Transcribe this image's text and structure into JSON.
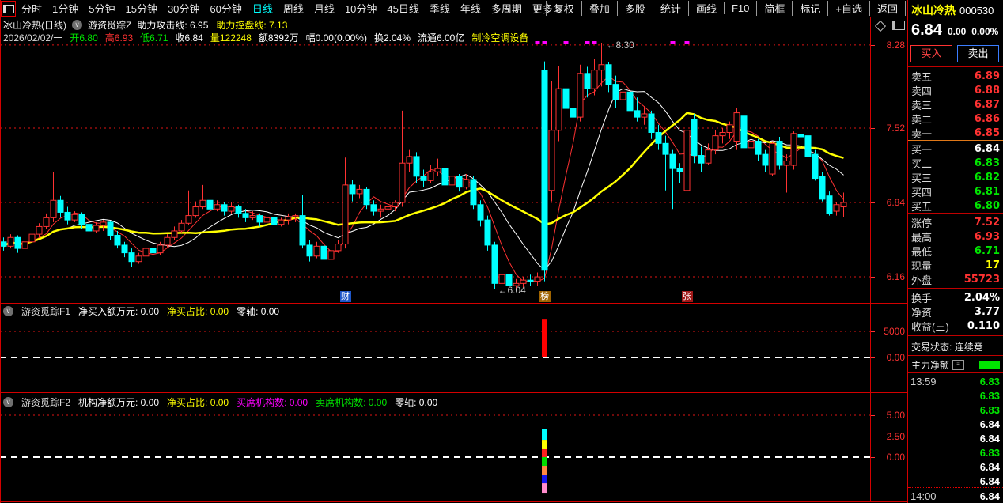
{
  "colors": {
    "red": "#ff3232",
    "green": "#00e600",
    "yellow": "#ffff00",
    "white": "#ffffff",
    "cyan": "#00ffff",
    "magenta": "#ff00ff",
    "axis": "#ff3232"
  },
  "toolbar": {
    "items_left": [
      "分时",
      "1分钟",
      "5分钟",
      "15分钟",
      "30分钟",
      "60分钟",
      "日线",
      "周线",
      "月线",
      "10分钟",
      "45日线",
      "季线",
      "年线",
      "多周期",
      "更多 >"
    ],
    "active_item": "日线",
    "items_right": [
      "复权",
      "叠加",
      "多股",
      "统计",
      "画线",
      "F10",
      "简框",
      "标记",
      "+自选",
      "返回"
    ]
  },
  "title_row": {
    "name_period": "冰山冷热(日线)",
    "indicator": "游资觅踪Z",
    "fields": [
      [
        "助力攻击线: 6.95",
        "#ffffff"
      ],
      [
        "助力控盘线: 7.13",
        "#ffff00"
      ]
    ]
  },
  "ohlc_row": [
    [
      "2026/02/02/一",
      "#dcdcdc"
    ],
    [
      "开6.80",
      "#00e600"
    ],
    [
      "高6.93",
      "#ff3232"
    ],
    [
      "低6.71",
      "#00e600"
    ],
    [
      "收6.84",
      "#ffffff"
    ],
    [
      "量122248",
      "#ffff00"
    ],
    [
      "额8392万",
      "#ffffff"
    ],
    [
      "幅0.00(0.00%)",
      "#ffffff"
    ],
    [
      "换2.04%",
      "#ffffff"
    ],
    [
      "流通6.00亿",
      "#ffffff"
    ],
    [
      "制冷空调设备",
      "#ffff00"
    ]
  ],
  "f1_header": [
    [
      "净买入额万元: 0.00",
      "#ffffff"
    ],
    [
      "净买占比: 0.00",
      "#ffff00"
    ],
    [
      "零轴: 0.00",
      "#ffffff"
    ]
  ],
  "f1_name": "游资觅踪F1",
  "f2_header": [
    [
      "机构净额万元: 0.00",
      "#ffffff"
    ],
    [
      "净买占比: 0.00",
      "#ffff00"
    ],
    [
      "买席机构数: 0.00",
      "#ff00ff"
    ],
    [
      "卖席机构数: 0.00",
      "#00e600"
    ],
    [
      "零轴: 0.00",
      "#ffffff"
    ]
  ],
  "f2_name": "游资觅踪F2",
  "right_panel": {
    "stock_name": "冰山冷热",
    "stock_code": "000530",
    "price": "6.84",
    "change": "0.00",
    "change_pct": "0.00%",
    "buy_button": "买入",
    "sell_button": "卖出",
    "sell_queue": [
      [
        "卖五",
        "6.89"
      ],
      [
        "卖四",
        "6.88"
      ],
      [
        "卖三",
        "6.87"
      ],
      [
        "卖二",
        "6.86"
      ],
      [
        "卖一",
        "6.85"
      ]
    ],
    "buy_queue": [
      [
        "买一",
        "6.84",
        "#ffffff"
      ],
      [
        "买二",
        "6.83",
        "#00e600"
      ],
      [
        "买三",
        "6.82",
        "#00e600"
      ],
      [
        "买四",
        "6.81",
        "#00e600"
      ],
      [
        "买五",
        "6.80",
        "#00e600"
      ]
    ],
    "stats": [
      [
        "涨停",
        "7.52",
        "#ff3232"
      ],
      [
        "最高",
        "6.93",
        "#ff3232"
      ],
      [
        "最低",
        "6.71",
        "#00e600"
      ],
      [
        "现量",
        "17",
        "#ffff00"
      ],
      [
        "外盘",
        "55723",
        "#ff3232"
      ]
    ],
    "stats2": [
      [
        "换手",
        "2.04%",
        "#ffffff"
      ],
      [
        "净资",
        "3.77",
        "#ffffff"
      ],
      [
        "收益(三)",
        "0.110",
        "#ffffff"
      ]
    ],
    "trade_status_label": "交易状态:",
    "trade_status_value": "连续竞",
    "main_flow_label": "主力净额",
    "trades": [
      [
        "13:59",
        "6.83",
        "#00e600"
      ],
      [
        "",
        "6.83",
        "#00e600"
      ],
      [
        "",
        "6.83",
        "#00e600"
      ],
      [
        "",
        "6.84",
        "#ffffff"
      ],
      [
        "",
        "6.84",
        "#ffffff"
      ],
      [
        "",
        "6.83",
        "#00e600"
      ],
      [
        "",
        "6.84",
        "#ffffff"
      ],
      [
        "",
        "6.84",
        "#ffffff"
      ],
      [
        "14:00",
        "6.84",
        "#ffffff"
      ]
    ]
  },
  "chart_data": [
    {
      "type": "candlestick",
      "panel": "main",
      "title": "冰山冷热(日线) 游资觅踪Z",
      "y_axis_ticks": [
        "8.28",
        "7.52",
        "6.84",
        "6.16"
      ],
      "grid_values": [
        8.28,
        7.52,
        6.84,
        6.16
      ],
      "up_color": "#ff3232",
      "down_color": "#00ffff",
      "ohlc": [
        [
          6.48,
          6.52,
          6.4,
          6.44
        ],
        [
          6.44,
          6.55,
          6.42,
          6.52
        ],
        [
          6.52,
          6.54,
          6.38,
          6.42
        ],
        [
          6.42,
          6.5,
          6.4,
          6.48
        ],
        [
          6.48,
          6.58,
          6.46,
          6.55
        ],
        [
          6.55,
          6.65,
          6.52,
          6.62
        ],
        [
          6.62,
          6.74,
          6.6,
          6.7
        ],
        [
          6.7,
          7.12,
          6.66,
          6.86
        ],
        [
          6.86,
          6.9,
          6.7,
          6.75
        ],
        [
          6.75,
          6.8,
          6.64,
          6.68
        ],
        [
          6.68,
          6.76,
          6.66,
          6.73
        ],
        [
          6.73,
          6.75,
          6.6,
          6.64
        ],
        [
          6.64,
          6.68,
          6.54,
          6.58
        ],
        [
          6.58,
          6.66,
          6.56,
          6.63
        ],
        [
          6.63,
          6.68,
          6.58,
          6.66
        ],
        [
          6.66,
          6.67,
          6.5,
          6.54
        ],
        [
          6.54,
          6.58,
          6.42,
          6.45
        ],
        [
          6.45,
          6.48,
          6.34,
          6.38
        ],
        [
          6.38,
          6.42,
          6.25,
          6.3
        ],
        [
          6.3,
          6.38,
          6.28,
          6.35
        ],
        [
          6.35,
          6.45,
          6.33,
          6.42
        ],
        [
          6.42,
          6.44,
          6.34,
          6.38
        ],
        [
          6.38,
          6.48,
          6.36,
          6.45
        ],
        [
          6.45,
          6.55,
          6.43,
          6.52
        ],
        [
          6.52,
          6.62,
          6.5,
          6.58
        ],
        [
          6.58,
          6.68,
          6.56,
          6.65
        ],
        [
          6.65,
          6.95,
          6.63,
          6.72
        ],
        [
          6.72,
          6.85,
          6.7,
          6.8
        ],
        [
          6.8,
          7.0,
          6.78,
          6.86
        ],
        [
          6.86,
          6.88,
          6.74,
          6.78
        ],
        [
          6.78,
          6.86,
          6.76,
          6.82
        ],
        [
          6.82,
          6.84,
          6.72,
          6.76
        ],
        [
          6.76,
          6.84,
          6.74,
          6.8
        ],
        [
          6.8,
          6.82,
          6.7,
          6.74
        ],
        [
          6.74,
          6.78,
          6.66,
          6.7
        ],
        [
          6.7,
          6.76,
          6.68,
          6.72
        ],
        [
          6.72,
          6.74,
          6.62,
          6.66
        ],
        [
          6.66,
          6.73,
          6.64,
          6.7
        ],
        [
          6.7,
          6.72,
          6.6,
          6.64
        ],
        [
          6.64,
          6.7,
          6.62,
          6.68
        ],
        [
          6.68,
          6.74,
          6.64,
          6.71
        ],
        [
          6.71,
          6.74,
          6.66,
          6.72
        ],
        [
          6.72,
          6.91,
          6.42,
          6.45
        ],
        [
          6.45,
          6.5,
          6.3,
          6.35
        ],
        [
          6.35,
          6.48,
          6.33,
          6.44
        ],
        [
          6.44,
          6.46,
          6.28,
          6.32
        ],
        [
          6.32,
          6.42,
          6.2,
          6.4
        ],
        [
          6.4,
          6.5,
          6.38,
          6.46
        ],
        [
          6.46,
          7.25,
          6.42,
          7.0
        ],
        [
          7.0,
          7.05,
          6.85,
          6.92
        ],
        [
          6.92,
          7.0,
          6.88,
          6.96
        ],
        [
          6.96,
          6.98,
          6.78,
          6.82
        ],
        [
          6.82,
          6.86,
          6.72,
          6.76
        ],
        [
          6.76,
          6.82,
          6.7,
          6.78
        ],
        [
          6.78,
          6.84,
          6.74,
          6.8
        ],
        [
          6.8,
          6.86,
          6.76,
          6.84
        ],
        [
          6.84,
          7.68,
          6.8,
          7.2
        ],
        [
          7.2,
          7.32,
          7.12,
          7.26
        ],
        [
          7.26,
          7.3,
          7.02,
          7.08
        ],
        [
          7.08,
          7.14,
          6.98,
          7.04
        ],
        [
          7.04,
          7.18,
          7.02,
          7.12
        ],
        [
          7.12,
          7.24,
          7.08,
          7.15
        ],
        [
          7.15,
          7.18,
          6.96,
          7.0
        ],
        [
          7.0,
          7.12,
          6.98,
          7.08
        ],
        [
          7.08,
          7.1,
          6.94,
          6.98
        ],
        [
          6.98,
          7.1,
          6.96,
          7.05
        ],
        [
          7.05,
          7.08,
          6.78,
          6.82
        ],
        [
          6.82,
          6.86,
          6.62,
          6.68
        ],
        [
          6.68,
          6.72,
          6.4,
          6.45
        ],
        [
          6.45,
          6.48,
          6.05,
          6.1
        ],
        [
          6.1,
          6.22,
          6.08,
          6.18
        ],
        [
          6.18,
          6.2,
          6.04,
          6.08
        ],
        [
          6.08,
          6.14,
          6.05,
          6.1
        ],
        [
          6.1,
          6.16,
          6.06,
          6.13
        ],
        [
          6.13,
          6.18,
          6.08,
          6.12
        ],
        [
          6.12,
          6.2,
          6.08,
          6.16
        ],
        [
          8.05,
          8.13,
          6.12,
          6.22
        ],
        [
          6.95,
          7.95,
          6.85,
          7.5
        ],
        [
          7.5,
          8.09,
          7.4,
          7.88
        ],
        [
          7.88,
          8.02,
          7.6,
          7.7
        ],
        [
          7.7,
          7.9,
          7.55,
          7.62
        ],
        [
          7.62,
          8.1,
          7.58,
          8.02
        ],
        [
          8.02,
          8.08,
          7.8,
          7.88
        ],
        [
          7.88,
          8.15,
          7.82,
          8.05
        ],
        [
          8.05,
          8.3,
          7.9,
          8.1
        ],
        [
          8.1,
          8.12,
          7.85,
          7.92
        ],
        [
          7.92,
          8.0,
          7.7,
          7.78
        ],
        [
          7.78,
          7.95,
          7.72,
          7.85
        ],
        [
          7.85,
          7.88,
          7.62,
          7.68
        ],
        [
          7.68,
          7.8,
          7.58,
          7.62
        ],
        [
          7.62,
          7.72,
          7.55,
          7.65
        ],
        [
          7.65,
          7.68,
          7.42,
          7.48
        ],
        [
          7.48,
          7.55,
          7.32,
          7.38
        ],
        [
          7.38,
          7.45,
          6.95,
          7.28
        ],
        [
          7.28,
          7.32,
          6.78,
          7.15
        ],
        [
          7.15,
          7.2,
          7.02,
          7.12
        ],
        [
          6.95,
          7.58,
          6.9,
          7.5
        ],
        [
          7.6,
          7.65,
          7.2,
          7.27
        ],
        [
          7.27,
          7.35,
          7.12,
          7.2
        ],
        [
          7.2,
          7.38,
          7.18,
          7.32
        ],
        [
          7.32,
          7.5,
          7.28,
          7.45
        ],
        [
          7.45,
          7.52,
          7.38,
          7.48
        ],
        [
          7.48,
          7.58,
          7.42,
          7.55
        ],
        [
          7.4,
          7.7,
          7.32,
          7.66
        ],
        [
          7.63,
          7.66,
          7.28,
          7.34
        ],
        [
          7.34,
          7.45,
          7.3,
          7.4
        ],
        [
          7.4,
          7.42,
          7.22,
          7.28
        ],
        [
          7.28,
          7.32,
          7.12,
          7.18
        ],
        [
          7.1,
          7.4,
          7.08,
          7.38
        ],
        [
          7.4,
          7.44,
          7.14,
          7.18
        ],
        [
          7.18,
          7.28,
          6.93,
          7.22
        ],
        [
          7.18,
          7.49,
          7.14,
          7.47
        ],
        [
          7.46,
          7.52,
          7.38,
          7.44
        ],
        [
          7.45,
          7.48,
          7.22,
          7.26
        ],
        [
          7.28,
          7.32,
          7.04,
          7.06
        ],
        [
          7.08,
          7.12,
          6.85,
          6.87
        ],
        [
          6.9,
          6.94,
          6.72,
          6.74
        ],
        [
          6.76,
          6.84,
          6.72,
          6.82
        ],
        [
          6.8,
          6.93,
          6.71,
          6.84
        ]
      ],
      "ma_lines": [
        {
          "name": "ma-yellow",
          "period": 20,
          "color": "#ffff00",
          "width": 2.5
        },
        {
          "name": "ma-white",
          "period": 10,
          "color": "#ffffff",
          "width": 1
        },
        {
          "name": "ma-red",
          "period": 5,
          "color": "#ff3232",
          "width": 1
        }
      ],
      "peak_annotation": {
        "text": "←8.30",
        "index": 84,
        "price": 8.3
      },
      "trough_annotation": {
        "text": "←6.04",
        "index": 71,
        "price": 6.04
      },
      "top_markers": {
        "color": "#ff00ff",
        "indices": [
          75,
          76,
          79,
          82,
          83,
          94,
          96
        ]
      },
      "event_tags": [
        {
          "label": "财",
          "index": 48,
          "bg": "#1e56c8"
        },
        {
          "label": "榜",
          "index": 76,
          "bg": "#a06400"
        },
        {
          "label": "张",
          "index": 96,
          "bg": "#a01818"
        }
      ],
      "last_bar": {
        "open": 6.8,
        "high": 6.93,
        "low": 6.71,
        "close": 6.84
      }
    },
    {
      "type": "bar",
      "panel": "F1",
      "panel_label": "游资觅踪F1",
      "y_axis_ticks": [
        "5000",
        "0.00"
      ],
      "grid_values": [
        5000,
        0
      ],
      "bars": [
        {
          "index": 76,
          "value": 7400,
          "color": "#ff0000"
        }
      ]
    },
    {
      "type": "stacked-bar",
      "panel": "F2",
      "panel_label": "游资觅踪F2",
      "y_axis_ticks": [
        "5.00",
        "2.50",
        "0.00"
      ],
      "grid_values": [
        5.0,
        2.5,
        0.0
      ],
      "stacks": [
        {
          "index": 76,
          "above": [
            {
              "value": 1.32,
              "color": "#00ffff"
            },
            {
              "value": 1.13,
              "color": "#ffff00"
            },
            {
              "value": 0.94,
              "color": "#ff2020"
            }
          ],
          "below": [
            {
              "value": 1.04,
              "color": "#00dd00"
            },
            {
              "value": 1.04,
              "color": "#ff8844"
            },
            {
              "value": 1.04,
              "color": "#1414ee"
            },
            {
              "value": 1.13,
              "color": "#ff8ccc"
            }
          ]
        }
      ]
    }
  ]
}
